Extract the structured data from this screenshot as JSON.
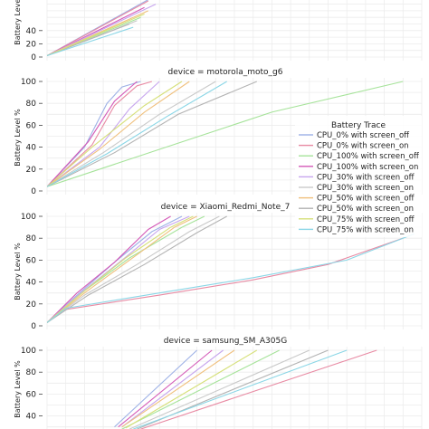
{
  "chart_data": {
    "type": "line",
    "ylabel": "Battery Level %",
    "grid": true,
    "legend": {
      "title": "Battery Trace",
      "placement": "right",
      "entries": [
        {
          "name": "CPU_0% with screen_off",
          "color": "#9db1e6"
        },
        {
          "name": "CPU_0% with screen_on",
          "color": "#e88aa3"
        },
        {
          "name": "CPU_100% with screen_off",
          "color": "#a6e39a"
        },
        {
          "name": "CPU_100% with screen_on",
          "color": "#d45ab8"
        },
        {
          "name": "CPU_30% with screen_off",
          "color": "#c7a6ee"
        },
        {
          "name": "CPU_30% with screen_on",
          "color": "#c9c9c9"
        },
        {
          "name": "CPU_50% with screen_off",
          "color": "#f0c07d"
        },
        {
          "name": "CPU_50% with screen_on",
          "color": "#b3b3b3"
        },
        {
          "name": "CPU_75% with screen_off",
          "color": "#d6e07a"
        },
        {
          "name": "CPU_75% with screen_on",
          "color": "#8ad6e6"
        }
      ]
    },
    "panels": [
      {
        "id": "top",
        "title": "",
        "ylim": [
          0,
          100
        ],
        "yticks": [
          0,
          20,
          40
        ],
        "xlim": [
          0,
          100
        ],
        "series": [
          {
            "color": "#9db1e6",
            "points": [
              [
                0,
                2
              ],
              [
                28,
                90
              ]
            ]
          },
          {
            "color": "#e88aa3",
            "points": [
              [
                0,
                2
              ],
              [
                27,
                85
              ]
            ]
          },
          {
            "color": "#a6e39a",
            "points": [
              [
                0,
                2
              ],
              [
                25,
                60
              ]
            ]
          },
          {
            "color": "#d45ab8",
            "points": [
              [
                0,
                2
              ],
              [
                26,
                75
              ]
            ]
          },
          {
            "color": "#c7a6ee",
            "points": [
              [
                0,
                2
              ],
              [
                29,
                80
              ]
            ]
          },
          {
            "color": "#c9c9c9",
            "points": [
              [
                0,
                2
              ],
              [
                24,
                55
              ]
            ]
          },
          {
            "color": "#f0c07d",
            "points": [
              [
                0,
                2
              ],
              [
                27,
                70
              ]
            ]
          },
          {
            "color": "#b3b3b3",
            "points": [
              [
                0,
                2
              ],
              [
                22,
                50
              ]
            ]
          },
          {
            "color": "#d6e07a",
            "points": [
              [
                0,
                2
              ],
              [
                26,
                65
              ]
            ]
          },
          {
            "color": "#8ad6e6",
            "points": [
              [
                0,
                2
              ],
              [
                23,
                45
              ]
            ]
          }
        ]
      },
      {
        "id": "motorola",
        "title": "device = motorola_moto_g6",
        "ylim": [
          0,
          100
        ],
        "yticks": [
          0,
          20,
          40,
          60,
          80,
          100
        ],
        "xlim": [
          0,
          100
        ],
        "series": [
          {
            "color": "#9db1e6",
            "points": [
              [
                0,
                4
              ],
              [
                10,
                40
              ],
              [
                16,
                80
              ],
              [
                20,
                95
              ],
              [
                25,
                100
              ]
            ]
          },
          {
            "color": "#e88aa3",
            "points": [
              [
                0,
                4
              ],
              [
                12,
                42
              ],
              [
                18,
                78
              ],
              [
                24,
                96
              ],
              [
                28,
                100
              ]
            ]
          },
          {
            "color": "#a6e39a",
            "points": [
              [
                0,
                4
              ],
              [
                30,
                38
              ],
              [
                60,
                72
              ],
              [
                95,
                100
              ]
            ]
          },
          {
            "color": "#d45ab8",
            "points": [
              [
                0,
                4
              ],
              [
                11,
                45
              ],
              [
                18,
                82
              ],
              [
                24,
                100
              ]
            ]
          },
          {
            "color": "#c7a6ee",
            "points": [
              [
                0,
                4
              ],
              [
                14,
                40
              ],
              [
                22,
                75
              ],
              [
                30,
                100
              ]
            ]
          },
          {
            "color": "#c9c9c9",
            "points": [
              [
                0,
                4
              ],
              [
                15,
                35
              ],
              [
                30,
                70
              ],
              [
                45,
                100
              ]
            ]
          },
          {
            "color": "#f0c07d",
            "points": [
              [
                0,
                4
              ],
              [
                14,
                38
              ],
              [
                26,
                72
              ],
              [
                38,
                100
              ]
            ]
          },
          {
            "color": "#b3b3b3",
            "points": [
              [
                0,
                4
              ],
              [
                18,
                35
              ],
              [
                35,
                70
              ],
              [
                56,
                100
              ]
            ]
          },
          {
            "color": "#d6e07a",
            "points": [
              [
                0,
                4
              ],
              [
                12,
                40
              ],
              [
                26,
                78
              ],
              [
                36,
                100
              ]
            ]
          },
          {
            "color": "#8ad6e6",
            "points": [
              [
                0,
                4
              ],
              [
                16,
                34
              ],
              [
                32,
                68
              ],
              [
                48,
                100
              ]
            ]
          }
        ]
      },
      {
        "id": "xiaomi",
        "title": "device = Xiaomi_Redmi_Note_7",
        "ylim": [
          0,
          100
        ],
        "yticks": [
          0,
          20,
          40,
          60,
          80,
          100
        ],
        "xlim": [
          0,
          100
        ],
        "series": [
          {
            "color": "#9db1e6",
            "points": [
              [
                0,
                3
              ],
              [
                8,
                28
              ],
              [
                18,
                58
              ],
              [
                28,
                86
              ],
              [
                36,
                100
              ]
            ]
          },
          {
            "color": "#e88aa3",
            "points": [
              [
                0,
                3
              ],
              [
                5,
                15
              ],
              [
                30,
                28
              ],
              [
                55,
                42
              ],
              [
                75,
                56
              ],
              [
                95,
                80
              ]
            ]
          },
          {
            "color": "#a6e39a",
            "points": [
              [
                0,
                3
              ],
              [
                10,
                32
              ],
              [
                22,
                62
              ],
              [
                36,
                90
              ],
              [
                42,
                100
              ]
            ]
          },
          {
            "color": "#d45ab8",
            "points": [
              [
                0,
                3
              ],
              [
                8,
                30
              ],
              [
                18,
                58
              ],
              [
                27,
                88
              ],
              [
                33,
                100
              ]
            ]
          },
          {
            "color": "#c7a6ee",
            "points": [
              [
                0,
                3
              ],
              [
                9,
                30
              ],
              [
                20,
                60
              ],
              [
                30,
                88
              ],
              [
                38,
                100
              ]
            ]
          },
          {
            "color": "#c9c9c9",
            "points": [
              [
                0,
                3
              ],
              [
                10,
                28
              ],
              [
                24,
                56
              ],
              [
                38,
                86
              ],
              [
                46,
                100
              ]
            ]
          },
          {
            "color": "#f0c07d",
            "points": [
              [
                0,
                3
              ],
              [
                10,
                30
              ],
              [
                22,
                60
              ],
              [
                34,
                90
              ],
              [
                40,
                100
              ]
            ]
          },
          {
            "color": "#b3b3b3",
            "points": [
              [
                0,
                3
              ],
              [
                11,
                28
              ],
              [
                26,
                56
              ],
              [
                40,
                85
              ],
              [
                48,
                100
              ]
            ]
          },
          {
            "color": "#d6e07a",
            "points": [
              [
                0,
                3
              ],
              [
                10,
                32
              ],
              [
                21,
                62
              ],
              [
                33,
                90
              ],
              [
                39,
                100
              ]
            ]
          },
          {
            "color": "#8ad6e6",
            "points": [
              [
                0,
                3
              ],
              [
                5,
                16
              ],
              [
                30,
                30
              ],
              [
                55,
                44
              ],
              [
                80,
                60
              ],
              [
                98,
                84
              ]
            ]
          }
        ]
      },
      {
        "id": "samsung",
        "title": "device = samsung_SM_A305G",
        "ylim": [
          0,
          100
        ],
        "yticks": [
          40,
          60,
          80,
          100
        ],
        "xlim": [
          0,
          100
        ],
        "series": [
          {
            "color": "#9db1e6",
            "points": [
              [
                18,
                30
              ],
              [
                40,
                100
              ]
            ]
          },
          {
            "color": "#e88aa3",
            "points": [
              [
                25,
                28
              ],
              [
                88,
                100
              ]
            ]
          },
          {
            "color": "#a6e39a",
            "points": [
              [
                20,
                28
              ],
              [
                62,
                100
              ]
            ]
          },
          {
            "color": "#d45ab8",
            "points": [
              [
                19,
                30
              ],
              [
                44,
                100
              ]
            ]
          },
          {
            "color": "#c7a6ee",
            "points": [
              [
                20,
                30
              ],
              [
                47,
                100
              ]
            ]
          },
          {
            "color": "#c9c9c9",
            "points": [
              [
                22,
                28
              ],
              [
                70,
                100
              ]
            ]
          },
          {
            "color": "#f0c07d",
            "points": [
              [
                20,
                30
              ],
              [
                50,
                100
              ]
            ]
          },
          {
            "color": "#b3b3b3",
            "points": [
              [
                24,
                28
              ],
              [
                75,
                100
              ]
            ]
          },
          {
            "color": "#d6e07a",
            "points": [
              [
                21,
                29
              ],
              [
                56,
                100
              ]
            ]
          },
          {
            "color": "#8ad6e6",
            "points": [
              [
                23,
                28
              ],
              [
                80,
                100
              ]
            ]
          }
        ]
      }
    ]
  }
}
